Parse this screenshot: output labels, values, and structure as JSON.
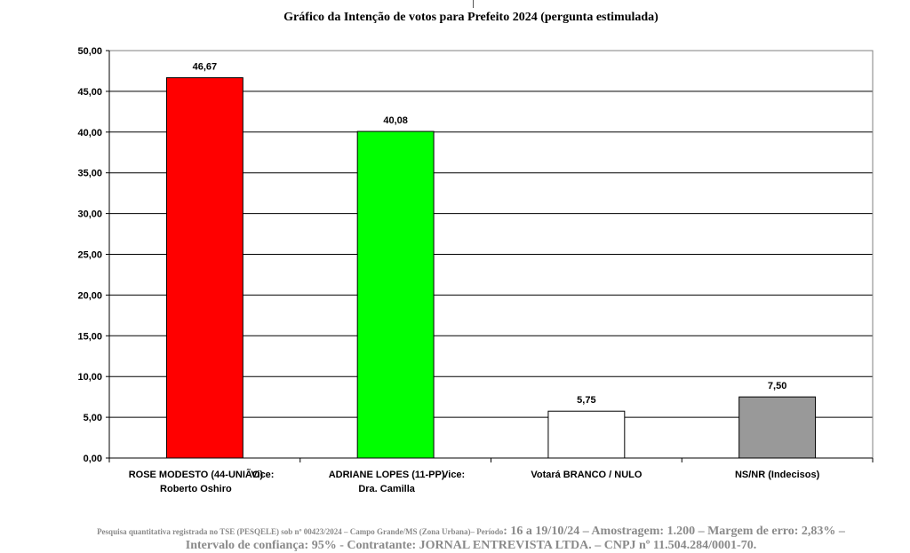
{
  "chart_data": {
    "type": "bar",
    "title": "Gráfico da Intenção de votos para Prefeito 2024 (pergunta estimulada)",
    "xlabel": "",
    "ylabel": "",
    "ylim": [
      0,
      50
    ],
    "yticks": [
      "0,00",
      "5,00",
      "10,00",
      "15,00",
      "20,00",
      "25,00",
      "30,00",
      "35,00",
      "40,00",
      "45,00",
      "50,00"
    ],
    "grid": true,
    "legend": "none",
    "categories": [
      {
        "line1": "ROSE MODESTO (44-UNIÃO)",
        "vice": "Vice:",
        "line2": "Roberto Oshiro"
      },
      {
        "line1": "ADRIANE LOPES (11-PP)",
        "vice": "Vice:",
        "line2": "Dra. Camilla"
      },
      {
        "line1": "Votará BRANCO / NULO",
        "vice": "",
        "line2": ""
      },
      {
        "line1": "NS/NR (Indecisos)",
        "vice": "",
        "line2": ""
      }
    ],
    "values": [
      46.67,
      40.08,
      5.75,
      7.5
    ],
    "value_labels": [
      "46,67",
      "40,08",
      "5,75",
      "7,50"
    ],
    "colors": [
      "#ff0000",
      "#00ff00",
      "#ffffff",
      "#999999"
    ]
  },
  "footer": {
    "line1_small": "Pesquisa quantitativa registrada no TSE (PESQELE) sob nº 00423/2024 – Campo Grande/MS (Zona Urbana)– Período",
    "line1_large": ": 16 a 19/10/24 – Amostragem: 1.200 – Margem de erro: 2,83% –",
    "line2": "Intervalo de confiança: 95% - Contratante: JORNAL ENTREVISTA LTDA. – CNPJ nº 11.504.284/0001-70."
  }
}
